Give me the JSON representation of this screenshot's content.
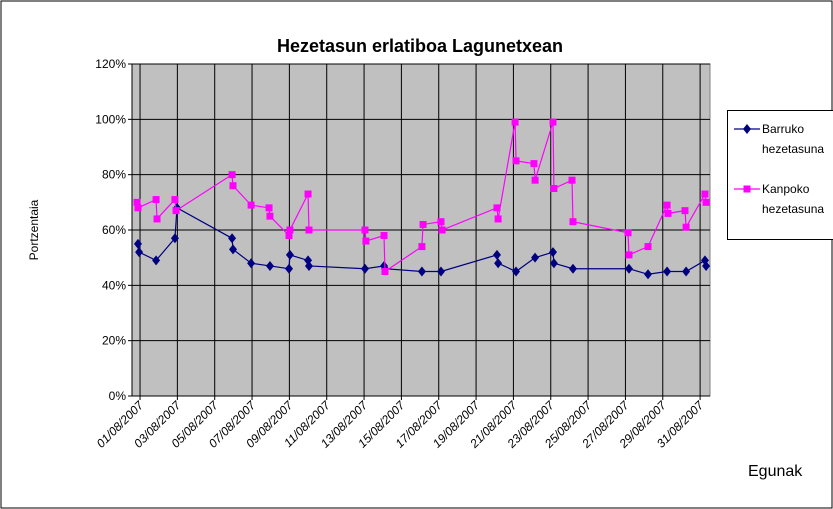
{
  "chart_data": {
    "type": "line",
    "title": "Hezetasun erlatiboa Lagunetxean",
    "y_label": "Portzentaia",
    "x_label": "Egunak",
    "xlim": [
      0.57,
      31.53
    ],
    "xticks": [
      {
        "value": 1,
        "label": "01/08/2007"
      },
      {
        "value": 3,
        "label": "03/08/2007"
      },
      {
        "value": 5,
        "label": "05/08/2007"
      },
      {
        "value": 7,
        "label": "07/08/2007"
      },
      {
        "value": 9,
        "label": "09/08/2007"
      },
      {
        "value": 11,
        "label": "11/08/2007"
      },
      {
        "value": 13,
        "label": "13/08/2007"
      },
      {
        "value": 15,
        "label": "15/08/2007"
      },
      {
        "value": 17,
        "label": "17/08/2007"
      },
      {
        "value": 19,
        "label": "19/08/2007"
      },
      {
        "value": 21,
        "label": "21/08/2007"
      },
      {
        "value": 23,
        "label": "23/08/2007"
      },
      {
        "value": 25,
        "label": "25/08/2007"
      },
      {
        "value": 27,
        "label": "27/08/2007"
      },
      {
        "value": 29,
        "label": "29/08/2007"
      },
      {
        "value": 31,
        "label": "31/08/2007"
      }
    ],
    "ylim": [
      0,
      120
    ],
    "yticks": [
      {
        "value": 0,
        "label": "0%"
      },
      {
        "value": 20,
        "label": "20%"
      },
      {
        "value": 40,
        "label": "40%"
      },
      {
        "value": 60,
        "label": "60%"
      },
      {
        "value": 80,
        "label": "80%"
      },
      {
        "value": 100,
        "label": "100%"
      },
      {
        "value": 120,
        "label": "120%"
      }
    ],
    "grid": true,
    "legend": "right",
    "series": [
      {
        "name": "Barruko hezetasuna",
        "color": "#000080",
        "marker": "diamond",
        "x": [
          0.89,
          0.95,
          1.86,
          2.87,
          2.98,
          5.93,
          5.98,
          6.95,
          7.96,
          8.98,
          9.03,
          10.0,
          10.05,
          13.05,
          14.07,
          14.12,
          16.1,
          17.12,
          20.12,
          20.18,
          21.14,
          22.16,
          23.12,
          23.17,
          24.19,
          27.19,
          28.21,
          29.23,
          30.25,
          31.26,
          31.32
        ],
        "values": [
          55,
          52,
          49,
          57,
          68,
          57,
          53,
          48,
          47,
          46,
          51,
          49,
          47,
          46,
          47,
          46,
          45,
          45,
          51,
          48,
          45,
          50,
          52,
          48,
          46,
          46,
          44,
          45,
          45,
          49,
          47
        ]
      },
      {
        "name": "Kanpoko hezetasuna",
        "color": "#ff00ff",
        "marker": "square",
        "x": [
          0.84,
          0.89,
          1.86,
          1.91,
          2.87,
          2.93,
          5.93,
          5.98,
          6.95,
          7.91,
          7.96,
          8.98,
          9.03,
          10.0,
          10.05,
          13.05,
          13.1,
          14.07,
          14.12,
          16.1,
          16.16,
          17.12,
          17.18,
          20.12,
          20.18,
          21.09,
          21.14,
          22.1,
          22.16,
          23.12,
          23.17,
          24.14,
          24.19,
          27.14,
          27.19,
          28.21,
          29.23,
          29.28,
          30.19,
          30.25,
          31.26,
          31.32
        ],
        "values": [
          70,
          68,
          71,
          64,
          71,
          67,
          80,
          76,
          69,
          68,
          65,
          58,
          60,
          73,
          60,
          60,
          56,
          58,
          45,
          54,
          62,
          63,
          60,
          68,
          64,
          99,
          85,
          84,
          78,
          99,
          75,
          78,
          63,
          59,
          51,
          54,
          69,
          66,
          67,
          61,
          73,
          70
        ]
      }
    ]
  }
}
